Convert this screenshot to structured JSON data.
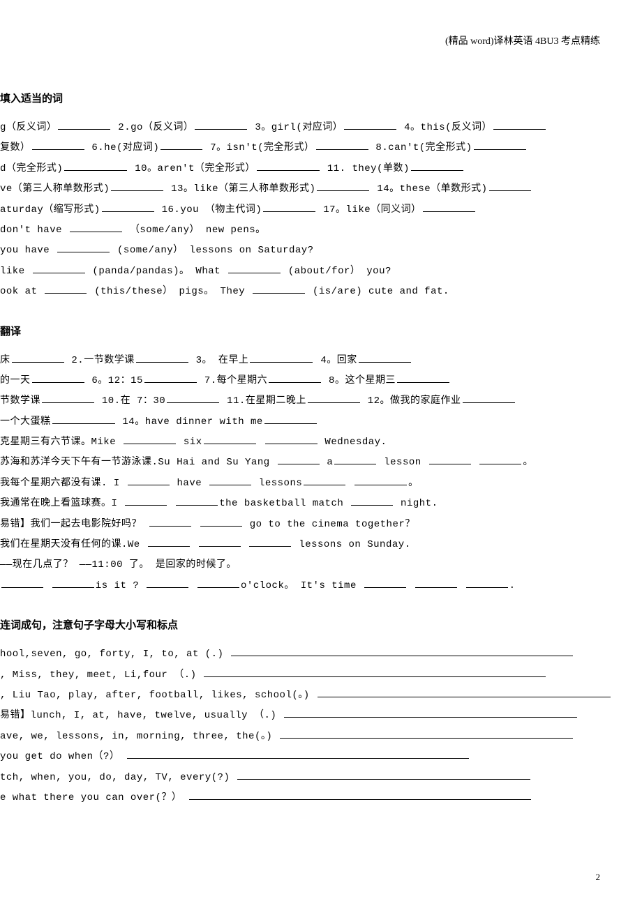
{
  "header": "(精品 word)译林英语 4BU3 考点精练",
  "page_number": "2",
  "section1": {
    "title": "填入适当的词",
    "lines": [
      {
        "parts": [
          {
            "t": "g（反义词）"
          },
          {
            "b": "m"
          },
          {
            "t": "  2.go（反义词）"
          },
          {
            "b": "m"
          },
          {
            "t": "   3。girl(对应词）"
          },
          {
            "b": "m"
          },
          {
            "t": "   4。this(反义词）"
          },
          {
            "b": "m"
          }
        ]
      },
      {
        "parts": [
          {
            "t": "复数）"
          },
          {
            "b": "m"
          },
          {
            "t": "   6.he(对应词)"
          },
          {
            "b": "s"
          },
          {
            "t": "   7。isn't(完全形式）"
          },
          {
            "b": "m"
          },
          {
            "t": "   8.can't(完全形式)"
          },
          {
            "b": "m"
          }
        ]
      },
      {
        "parts": [
          {
            "t": "d（完全形式)"
          },
          {
            "b": "l"
          },
          {
            "t": "  10。aren't（完全形式）"
          },
          {
            "b": "l"
          },
          {
            "t": "    11. they(单数)"
          },
          {
            "b": "m"
          }
        ]
      },
      {
        "parts": [
          {
            "t": "ve（第三人称单数形式)"
          },
          {
            "b": "m"
          },
          {
            "t": "   13。like（第三人称单数形式)"
          },
          {
            "b": "m"
          },
          {
            "t": "   14。these（单数形式)"
          },
          {
            "b": "s"
          }
        ]
      },
      {
        "parts": [
          {
            "t": "aturday（缩写形式)"
          },
          {
            "b": "m"
          },
          {
            "t": "  16.you （物主代词)"
          },
          {
            "b": "m"
          },
          {
            "t": "   17。like（同义词）"
          },
          {
            "b": "m"
          }
        ]
      },
      {
        "parts": [
          {
            "t": " don't have "
          },
          {
            "b": "m"
          },
          {
            "t": " （some/any）  new pens。"
          }
        ]
      },
      {
        "parts": [
          {
            "t": " you have "
          },
          {
            "b": "m"
          },
          {
            "t": " (some/any） lessons on Saturday?"
          }
        ]
      },
      {
        "parts": [
          {
            "t": "like "
          },
          {
            "b": "m"
          },
          {
            "t": " (panda/pandas)。 What "
          },
          {
            "b": "m"
          },
          {
            "t": " (about/for） you?"
          }
        ]
      },
      {
        "parts": [
          {
            "t": "ook at "
          },
          {
            "b": "s"
          },
          {
            "t": " (this/these） pigs。 They "
          },
          {
            "b": "m"
          },
          {
            "t": " (is/are) cute and fat."
          }
        ]
      }
    ]
  },
  "section2": {
    "title": "翻译",
    "lines": [
      {
        "parts": [
          {
            "t": "床"
          },
          {
            "b": "m"
          },
          {
            "t": "  2.一节数学课"
          },
          {
            "b": "m"
          },
          {
            "t": "    3。 在早上"
          },
          {
            "b": "l"
          },
          {
            "t": "    4。回家"
          },
          {
            "b": "m"
          }
        ]
      },
      {
        "parts": [
          {
            "t": "的一天"
          },
          {
            "b": "m"
          },
          {
            "t": "   6。12：15"
          },
          {
            "b": "m"
          },
          {
            "t": "   7.每个星期六"
          },
          {
            "b": "m"
          },
          {
            "t": "  8。这个星期三"
          },
          {
            "b": "m"
          }
        ]
      },
      {
        "parts": [
          {
            "t": "节数学课"
          },
          {
            "b": "m"
          },
          {
            "t": "   10.在 7：30"
          },
          {
            "b": "m"
          },
          {
            "t": "   11.在星期二晚上"
          },
          {
            "b": "m"
          },
          {
            "t": " 12。做我的家庭作业"
          },
          {
            "b": "m"
          }
        ]
      },
      {
        "parts": [
          {
            "t": "一个大蛋糕"
          },
          {
            "b": "l"
          },
          {
            "t": "     14。have dinner with me"
          },
          {
            "b": "m"
          }
        ]
      },
      {
        "parts": [
          {
            "t": "克星期三有六节课。Mike "
          },
          {
            "b": "m"
          },
          {
            "t": " six"
          },
          {
            "b": "m"
          },
          {
            "t": " "
          },
          {
            "b": "m"
          },
          {
            "t": " Wednesday."
          }
        ]
      },
      {
        "parts": [
          {
            "t": "苏海和苏洋今天下午有一节游泳课.Su Hai and Su Yang "
          },
          {
            "b": "s"
          },
          {
            "t": " a"
          },
          {
            "b": "s"
          },
          {
            "t": " lesson "
          },
          {
            "b": "s"
          },
          {
            "t": " "
          },
          {
            "b": "s"
          },
          {
            "t": "。"
          }
        ]
      },
      {
        "parts": [
          {
            "t": "我每个星期六都没有课. I "
          },
          {
            "b": "s"
          },
          {
            "t": " have "
          },
          {
            "b": "s"
          },
          {
            "t": " lessons"
          },
          {
            "b": "s"
          },
          {
            "t": " "
          },
          {
            "b": "m"
          },
          {
            "t": "。"
          }
        ]
      },
      {
        "parts": [
          {
            "t": "我通常在晚上看篮球赛。I "
          },
          {
            "b": "s"
          },
          {
            "t": " "
          },
          {
            "b": "s"
          },
          {
            "t": "the basketball match "
          },
          {
            "b": "s"
          },
          {
            "t": " night."
          }
        ]
      },
      {
        "parts": [
          {
            "t": " 易错】我们一起去电影院好吗？ "
          },
          {
            "b": "s"
          },
          {
            "t": " "
          },
          {
            "b": "s"
          },
          {
            "t": " go to the cinema together？"
          }
        ]
      },
      {
        "parts": [
          {
            "t": "我们在星期天没有任何的课.We "
          },
          {
            "b": "s"
          },
          {
            "t": " "
          },
          {
            "b": "s"
          },
          {
            "t": " "
          },
          {
            "b": "s"
          },
          {
            "t": " lessons on Sunday."
          }
        ]
      },
      {
        "parts": [
          {
            "t": "——现在几点了？ ——11:00 了。 是回家的时候了。"
          }
        ]
      },
      {
        "parts": [
          {
            "b": "s"
          },
          {
            "t": " "
          },
          {
            "b": "s"
          },
          {
            "t": "is it ?  "
          },
          {
            "b": "s"
          },
          {
            "t": " "
          },
          {
            "b": "s"
          },
          {
            "t": "o'clock。  It's time "
          },
          {
            "b": "s"
          },
          {
            "t": " "
          },
          {
            "b": "s"
          },
          {
            "t": " "
          },
          {
            "b": "s"
          },
          {
            "t": "."
          }
        ]
      }
    ]
  },
  "section3": {
    "title": "连词成句，注意句子字母大小写和标点",
    "lines": [
      {
        "parts": [
          {
            "t": "hool,seven, go, forty, I, to, at (.)   "
          },
          {
            "b": "xxl"
          }
        ]
      },
      {
        "parts": [
          {
            "t": ", Miss, they, meet, Li,four （.)  "
          },
          {
            "b": "xxl"
          }
        ]
      },
      {
        "parts": [
          {
            "t": ", Liu Tao, play, after, football, likes,  school(。) "
          },
          {
            "b": "xl"
          }
        ]
      },
      {
        "parts": [
          {
            "t": " 易错】lunch, I, at, have, twelve, usually （.) "
          },
          {
            "b": "xl"
          }
        ]
      },
      {
        "parts": [
          {
            "t": "ave, we, lessons, in, morning, three, the(。) "
          },
          {
            "b": "xl"
          }
        ]
      },
      {
        "parts": [
          {
            "t": "  you  get  do  when（?） "
          },
          {
            "b": "xxl"
          }
        ]
      },
      {
        "parts": [
          {
            "t": "tch,  when,  you, do, day, TV,  every(?) "
          },
          {
            "b": "xl"
          }
        ]
      },
      {
        "parts": [
          {
            "t": "e  what  there  you  can  over(？） "
          },
          {
            "b": "xxl"
          }
        ]
      }
    ]
  }
}
